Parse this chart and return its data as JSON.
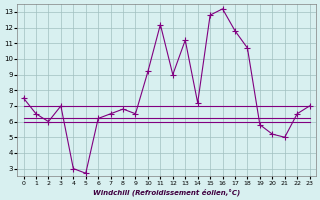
{
  "xlabel": "Windchill (Refroidissement éolien,°C)",
  "hours": [
    0,
    1,
    2,
    3,
    4,
    5,
    6,
    7,
    8,
    9,
    10,
    11,
    12,
    13,
    14,
    15,
    16,
    17,
    18,
    19,
    20,
    21,
    22,
    23
  ],
  "windchill": [
    7.5,
    6.5,
    6.0,
    7.0,
    3.0,
    2.7,
    6.2,
    6.5,
    6.8,
    6.5,
    9.2,
    12.2,
    9.0,
    11.2,
    7.2,
    12.8,
    13.2,
    11.8,
    10.7,
    5.8,
    5.2,
    5.0,
    6.5,
    7.0
  ],
  "flat_line1": [
    7.0,
    7.0,
    7.0,
    7.0,
    7.0,
    7.0,
    7.0,
    7.0,
    7.0,
    7.0,
    7.0,
    7.0,
    7.0,
    7.0,
    7.0,
    7.0,
    7.0,
    7.0,
    7.0,
    7.0,
    7.0,
    7.0,
    7.0,
    7.0
  ],
  "flat_line2": [
    6.0,
    6.0,
    6.0,
    6.0,
    6.0,
    6.0,
    6.0,
    6.0,
    6.0,
    6.0,
    6.0,
    6.0,
    6.0,
    6.0,
    6.0,
    6.0,
    6.0,
    6.0,
    6.0,
    6.0,
    6.0,
    6.0,
    6.0,
    6.0
  ],
  "flat_line3_start": 0,
  "flat_line3": [
    6.2,
    6.2,
    6.2,
    6.2,
    6.2,
    6.2,
    6.2,
    6.2,
    6.2,
    6.2,
    6.2,
    6.2,
    6.2,
    6.2,
    6.2,
    6.2,
    6.2,
    6.2,
    6.2,
    6.2,
    6.2,
    6.2,
    6.2,
    6.2
  ],
  "line_color": "#800080",
  "bg_color": "#d8f0f0",
  "grid_color": "#a0c0c0",
  "ylim": [
    2.5,
    13.5
  ],
  "yticks": [
    3,
    4,
    5,
    6,
    7,
    8,
    9,
    10,
    11,
    12,
    13
  ],
  "xticks": [
    0,
    1,
    2,
    3,
    4,
    5,
    6,
    7,
    8,
    9,
    10,
    11,
    12,
    13,
    14,
    15,
    16,
    17,
    18,
    19,
    20,
    21,
    22,
    23
  ]
}
